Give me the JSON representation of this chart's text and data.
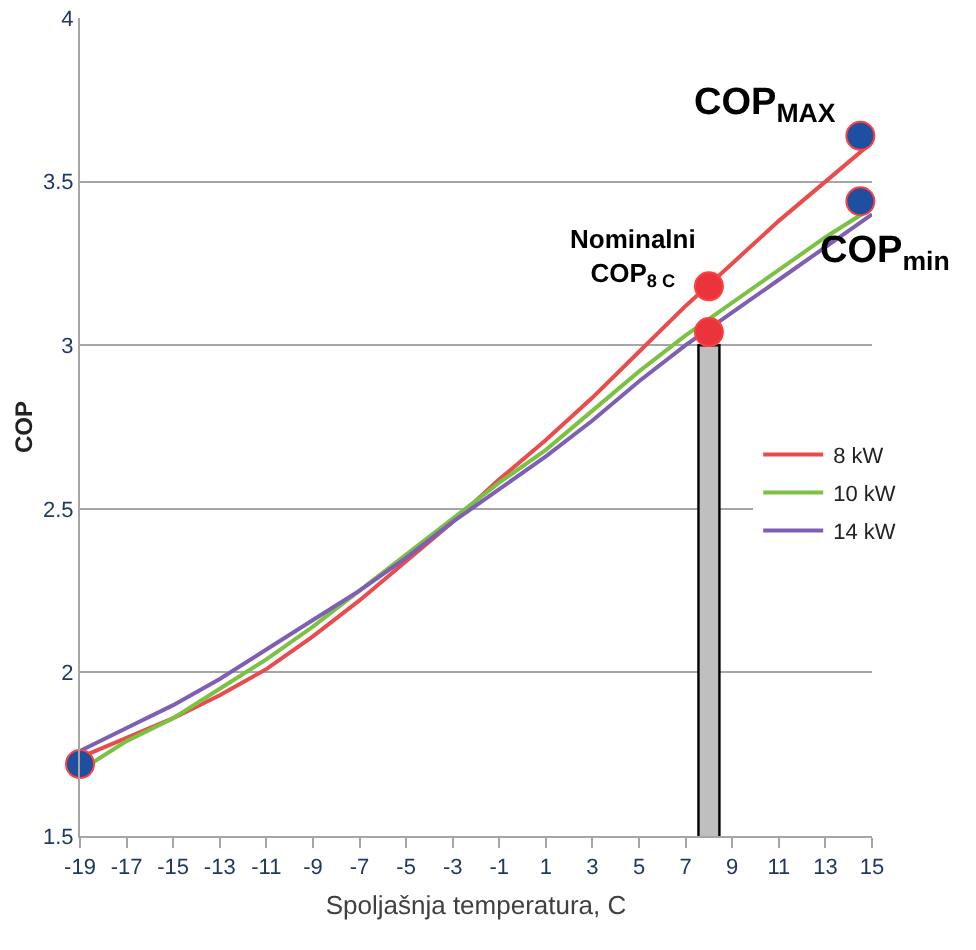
{
  "chart_data": {
    "type": "line",
    "xlabel": "Spoljašnja temperatura, C",
    "ylabel": "COP",
    "x": [
      -19,
      -17,
      -15,
      -13,
      -11,
      -9,
      -7,
      -5,
      -3,
      -1,
      1,
      3,
      5,
      7,
      9,
      11,
      13,
      15
    ],
    "xlim": [
      -19,
      15
    ],
    "xticks": [
      -19,
      -17,
      -15,
      -13,
      -11,
      -9,
      -7,
      -5,
      -3,
      -1,
      1,
      3,
      5,
      7,
      9,
      11,
      13,
      15
    ],
    "ylim": [
      1.5,
      4
    ],
    "yticks": [
      1.5,
      2,
      2.5,
      3,
      3.5,
      4
    ],
    "grid": "y",
    "legend": "right",
    "series": [
      {
        "type": "bar",
        "color": "#bfbfbf",
        "x": [
          8
        ],
        "values": [
          3.0
        ]
      },
      {
        "name": "8 kW",
        "color": "#e84c4c",
        "values": [
          1.74,
          1.8,
          1.86,
          1.93,
          2.01,
          2.11,
          2.22,
          2.34,
          2.46,
          2.59,
          2.71,
          2.84,
          2.98,
          3.12,
          3.25,
          3.38,
          3.5,
          3.62
        ]
      },
      {
        "name": "10 kW",
        "color": "#7cc242",
        "values": [
          1.7,
          1.79,
          1.86,
          1.95,
          2.04,
          2.14,
          2.25,
          2.36,
          2.47,
          2.58,
          2.68,
          2.8,
          2.92,
          3.03,
          3.13,
          3.23,
          3.33,
          3.42
        ]
      },
      {
        "name": "14 kW",
        "color": "#7e5fb4",
        "values": [
          1.76,
          1.83,
          1.9,
          1.98,
          2.07,
          2.16,
          2.25,
          2.35,
          2.46,
          2.56,
          2.66,
          2.77,
          2.89,
          3.0,
          3.1,
          3.2,
          3.3,
          3.4
        ]
      },
      {
        "type": "scatter",
        "color": "#1f4fa0",
        "x": [
          -19,
          14.5,
          14.5
        ],
        "values": [
          1.72,
          3.64,
          3.44
        ]
      },
      {
        "type": "scatter",
        "color": "#e8343a",
        "x": [
          8,
          8
        ],
        "values": [
          3.18,
          3.04
        ]
      }
    ],
    "annotations": [
      "COP$_{MAX}$",
      "COP$_{min}$",
      "Nominalni\nCOP$_{8 C}$"
    ]
  }
}
